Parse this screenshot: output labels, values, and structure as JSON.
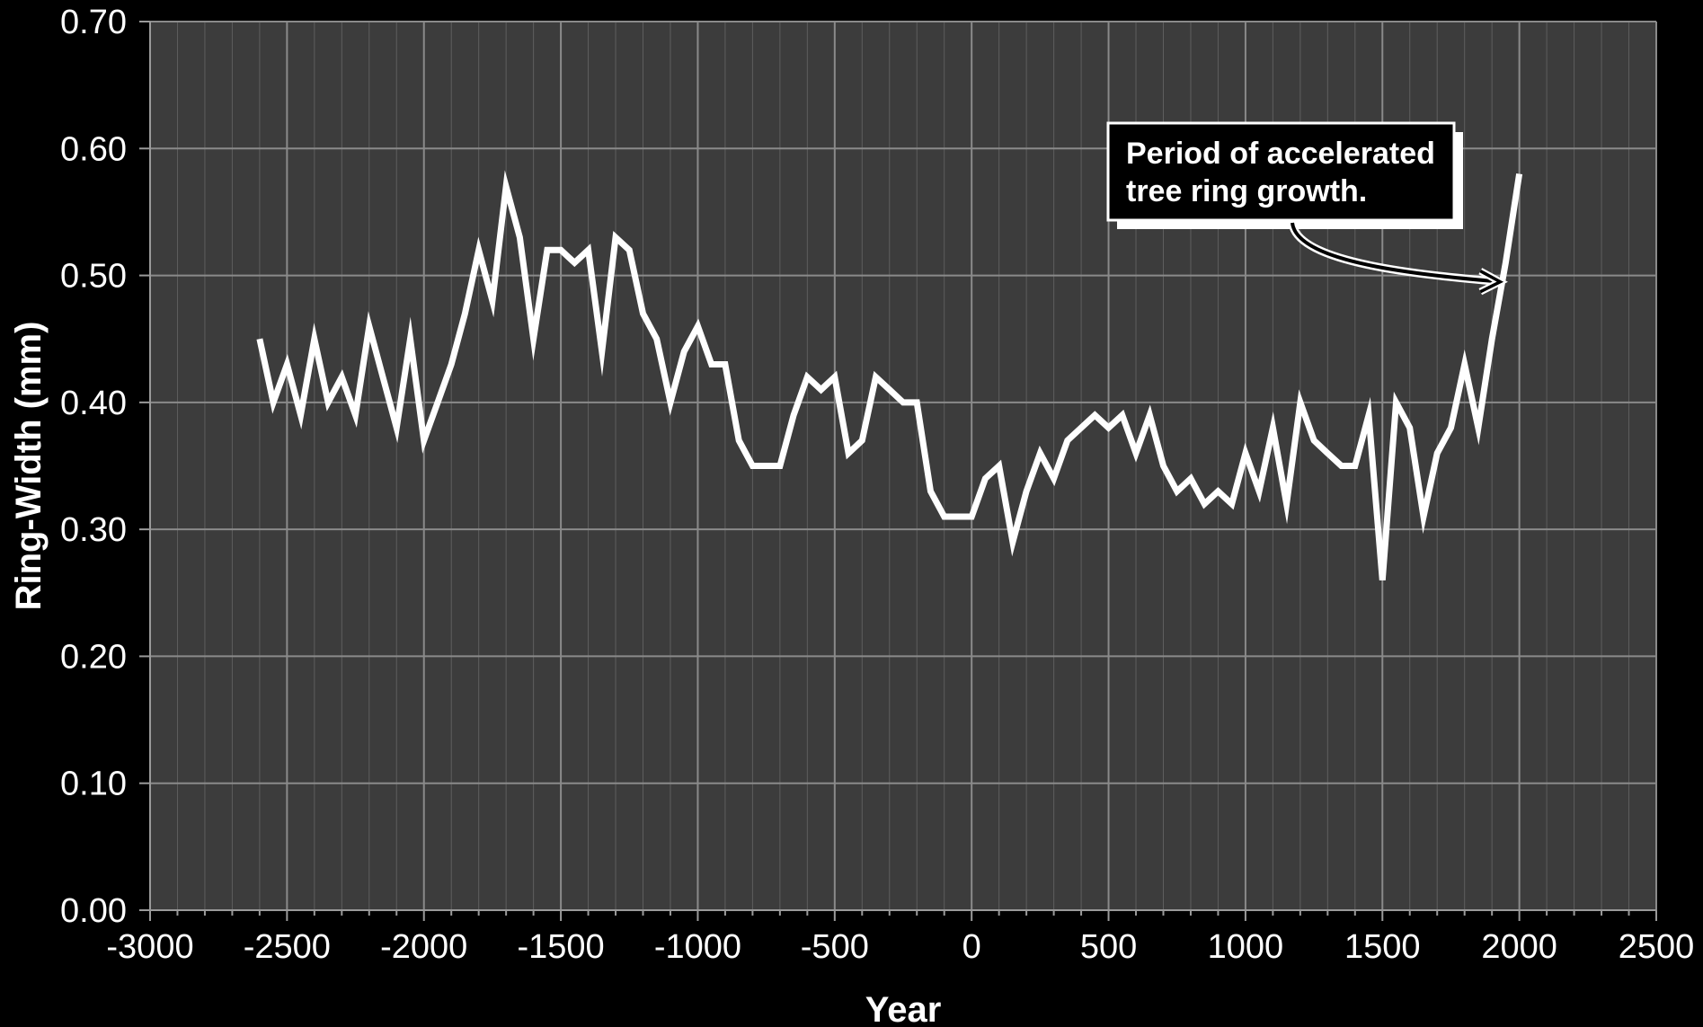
{
  "chart_data": {
    "type": "line",
    "title": "",
    "xlabel": "Year",
    "ylabel": "Ring-Width (mm)",
    "xlim": [
      -3000,
      2500
    ],
    "ylim": [
      0,
      0.7
    ],
    "x_ticks": [
      -3000,
      -2500,
      -2000,
      -1500,
      -1000,
      -500,
      0,
      500,
      1000,
      1500,
      2000,
      2500
    ],
    "x_tick_labels": [
      "-3000",
      "-2500",
      "-2000",
      "-1500",
      "-1000",
      "-500",
      "0",
      "500",
      "1000",
      "1500",
      "2000",
      "2500"
    ],
    "y_ticks": [
      0,
      0.1,
      0.2,
      0.3,
      0.4,
      0.5,
      0.6,
      0.7
    ],
    "y_tick_labels": [
      "0.00",
      "0.10",
      "0.20",
      "0.30",
      "0.40",
      "0.50",
      "0.60",
      "0.70"
    ],
    "x_minor_step": 100,
    "grid": true,
    "background_color": "#3c3c3c",
    "line_color": "#ffffff",
    "series": [
      {
        "x": [
          -2600,
          -2550,
          -2500,
          -2450,
          -2400,
          -2350,
          -2300,
          -2250,
          -2200,
          -2150,
          -2100,
          -2050,
          -2000,
          -1950,
          -1900,
          -1850,
          -1800,
          -1750,
          -1700,
          -1650,
          -1600,
          -1550,
          -1500,
          -1450,
          -1400,
          -1350,
          -1300,
          -1250,
          -1200,
          -1150,
          -1100,
          -1050,
          -1000,
          -950,
          -900,
          -850,
          -800,
          -750,
          -700,
          -650,
          -600,
          -550,
          -500,
          -450,
          -400,
          -350,
          -300,
          -250,
          -200,
          -150,
          -100,
          -50,
          0,
          50,
          100,
          150,
          200,
          250,
          300,
          350,
          400,
          450,
          500,
          550,
          600,
          650,
          700,
          750,
          800,
          850,
          900,
          950,
          1000,
          1050,
          1100,
          1150,
          1200,
          1250,
          1300,
          1350,
          1400,
          1450,
          1500,
          1550,
          1600,
          1650,
          1700,
          1750,
          1800,
          1850,
          1900,
          1950,
          2000
        ],
        "values": [
          0.45,
          0.4,
          0.43,
          0.39,
          0.45,
          0.4,
          0.42,
          0.39,
          0.46,
          0.42,
          0.38,
          0.45,
          0.37,
          0.4,
          0.43,
          0.47,
          0.52,
          0.48,
          0.57,
          0.53,
          0.45,
          0.52,
          0.52,
          0.51,
          0.52,
          0.44,
          0.53,
          0.52,
          0.47,
          0.45,
          0.4,
          0.44,
          0.46,
          0.43,
          0.43,
          0.37,
          0.35,
          0.35,
          0.35,
          0.39,
          0.42,
          0.41,
          0.42,
          0.36,
          0.37,
          0.42,
          0.41,
          0.4,
          0.4,
          0.33,
          0.31,
          0.31,
          0.31,
          0.34,
          0.35,
          0.29,
          0.33,
          0.36,
          0.34,
          0.37,
          0.38,
          0.39,
          0.38,
          0.39,
          0.36,
          0.39,
          0.35,
          0.33,
          0.34,
          0.32,
          0.33,
          0.32,
          0.36,
          0.33,
          0.38,
          0.32,
          0.4,
          0.37,
          0.36,
          0.35,
          0.35,
          0.39,
          0.26,
          0.4,
          0.38,
          0.31,
          0.36,
          0.38,
          0.43,
          0.38,
          0.45,
          0.51,
          0.58
        ]
      }
    ],
    "annotations": [
      {
        "lines": [
          "Period of accelerated",
          "tree ring growth."
        ],
        "arrow_target": {
          "x": 1930,
          "y": 0.495
        }
      }
    ]
  }
}
